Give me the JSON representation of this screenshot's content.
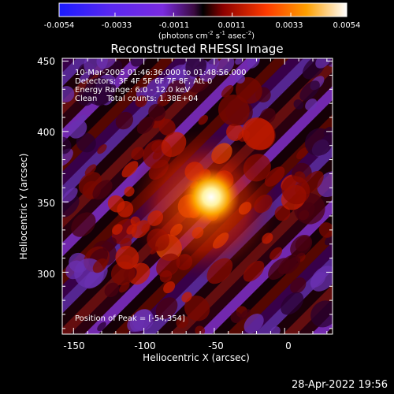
{
  "colorbar": {
    "ticks": [
      "-0.0054",
      "-0.0033",
      "-0.0011",
      "0.0011",
      "0.0033",
      "0.0054"
    ],
    "tick_values": [
      -0.0054,
      -0.0033,
      -0.0011,
      0.0011,
      0.0033,
      0.0054
    ],
    "units_parts": [
      "(photons cm",
      "-2",
      " s",
      "-1",
      " asec",
      "-2",
      ")"
    ],
    "colors": [
      "#1b1bff",
      "#7a2be0",
      "#3a001a",
      "#8b0000",
      "#ff3a00",
      "#ffa000",
      "#ffffff"
    ]
  },
  "info": {
    "time_range": "10-Mar-2005 01:46:36.000 to 01:48:56.000",
    "detectors": "Detectors: 3F 4F 5F 6F 7F 8F, Att 0",
    "energy": "Energy Range: 6.0 - 12.0 keV",
    "method": "Clean",
    "total_counts": "Total counts: 1.38E+04"
  },
  "peak_text": "Position of Peak = [-54,354]",
  "timestamp": "28-Apr-2022 19:56",
  "chart_data": {
    "type": "heatmap",
    "title": "Reconstructed RHESSI Image",
    "xlabel": "Heliocentric X (arcsec)",
    "ylabel": "Heliocentric Y (arcsec)",
    "xlim": [
      -158,
      34
    ],
    "ylim": [
      256,
      452
    ],
    "xticks": [
      "-150",
      "-100",
      "-50",
      "0"
    ],
    "xtick_values": [
      -150,
      -100,
      -50,
      0
    ],
    "yticks": [
      "300",
      "350",
      "400",
      "450"
    ],
    "ytick_values": [
      300,
      350,
      400,
      450
    ],
    "value_range": [
      -0.0054,
      0.0054
    ],
    "peak": {
      "x": -54,
      "y": 354
    },
    "grid": false
  }
}
